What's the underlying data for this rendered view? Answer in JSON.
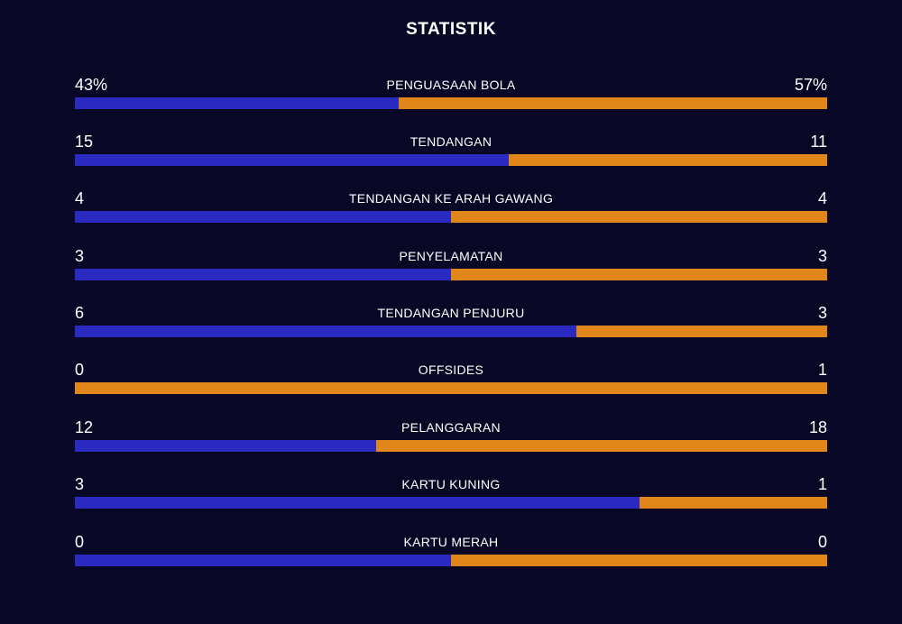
{
  "title": "STATISTIK",
  "colors": {
    "home": "#2b2ac0",
    "away": "#e0861a",
    "background": "#080826"
  },
  "stats": [
    {
      "label": "PENGUASAAN BOLA",
      "home": "43%",
      "away": "57%",
      "home_share": 0.43
    },
    {
      "label": "TENDANGAN",
      "home": "15",
      "away": "11",
      "home_share": 0.577
    },
    {
      "label": "TENDANGAN KE ARAH GAWANG",
      "home": "4",
      "away": "4",
      "home_share": 0.5
    },
    {
      "label": "PENYELAMATAN",
      "home": "3",
      "away": "3",
      "home_share": 0.5
    },
    {
      "label": "TENDANGAN PENJURU",
      "home": "6",
      "away": "3",
      "home_share": 0.667
    },
    {
      "label": "OFFSIDES",
      "home": "0",
      "away": "1",
      "home_share": 0.0
    },
    {
      "label": "PELANGGARAN",
      "home": "12",
      "away": "18",
      "home_share": 0.4
    },
    {
      "label": "KARTU KUNING",
      "home": "3",
      "away": "1",
      "home_share": 0.75
    },
    {
      "label": "KARTU MERAH",
      "home": "0",
      "away": "0",
      "home_share": 0.5
    }
  ]
}
